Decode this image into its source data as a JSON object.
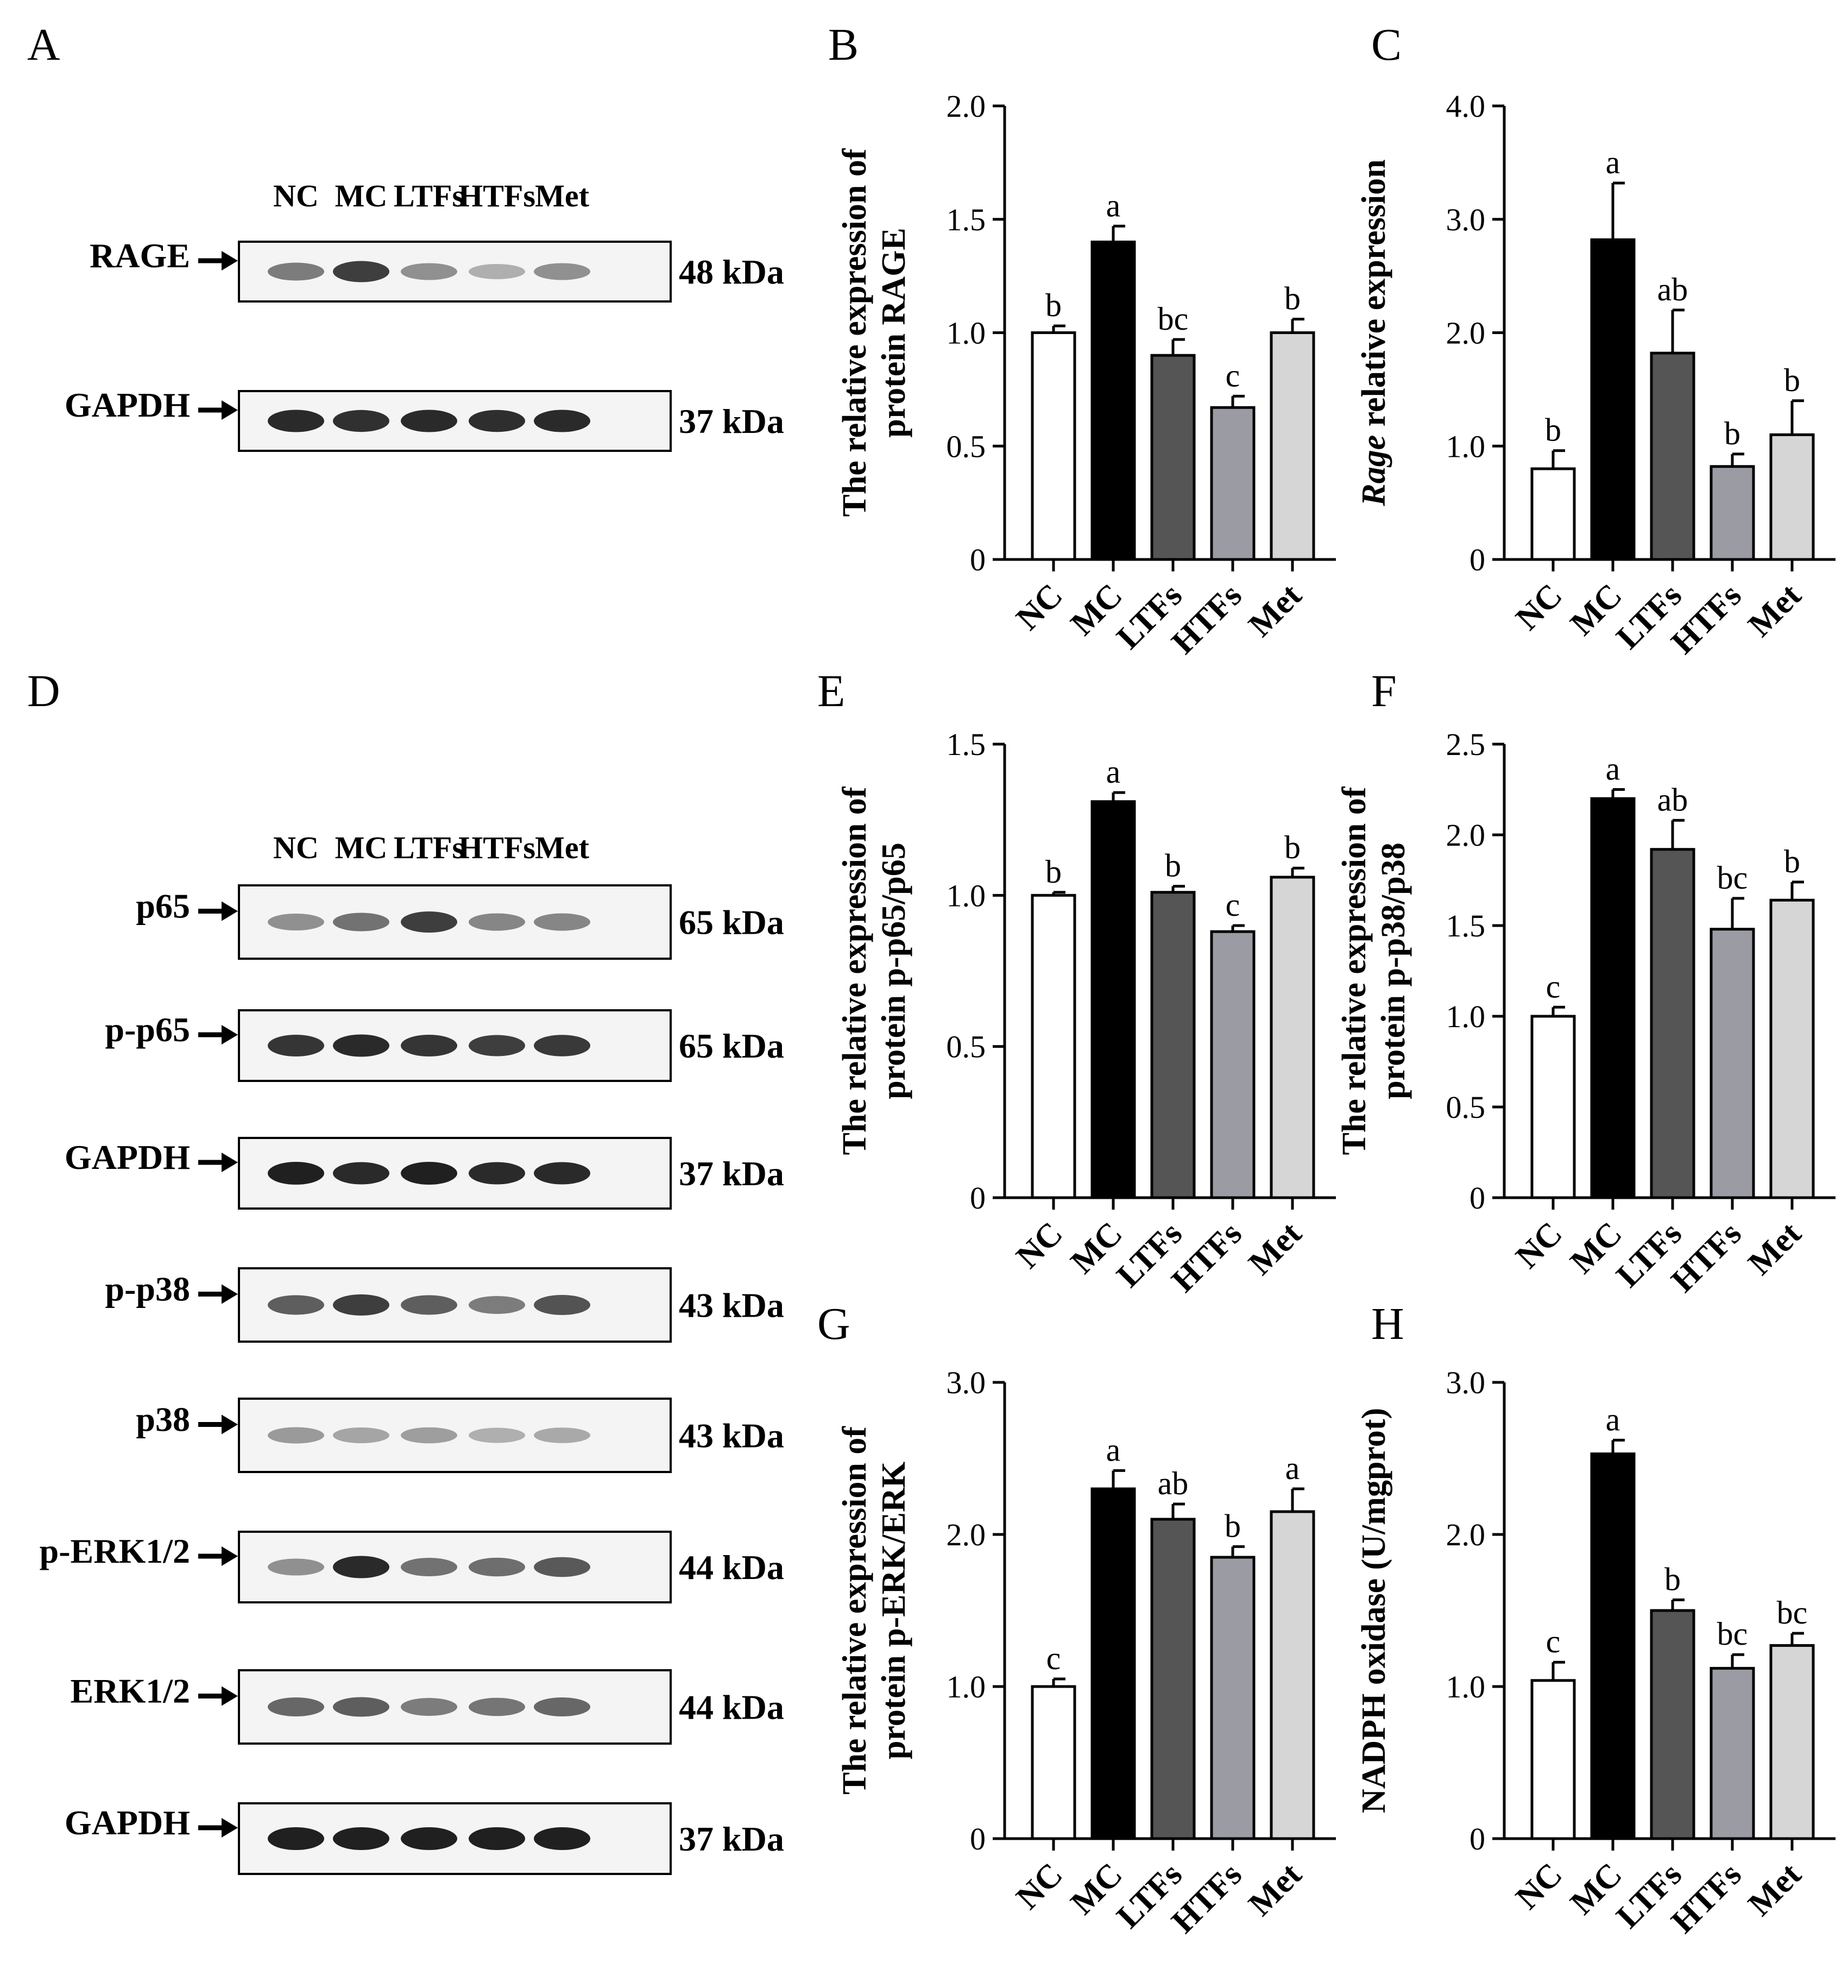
{
  "lanes": [
    "NC",
    "MC",
    "LTFs",
    "HTFs",
    "Met"
  ],
  "colors": {
    "NC": "#ffffff",
    "MC": "#000000",
    "LTFs": "#555555",
    "HTFs": "#9b9ba3",
    "Met": "#d6d6d6"
  },
  "blots": [
    {
      "panel": "A",
      "lane_labels": [
        "NC",
        "MC",
        "LTFs",
        "HTFs",
        "Met"
      ],
      "rows": [
        {
          "label": "RAGE",
          "kda": "48 kDa",
          "intensity": [
            0.55,
            0.85,
            0.45,
            0.3,
            0.45
          ]
        },
        {
          "label": "GAPDH",
          "kda": "37 kDa",
          "intensity": [
            0.95,
            0.92,
            0.95,
            0.93,
            0.95
          ]
        }
      ]
    },
    {
      "panel": "D",
      "lane_labels": [
        "NC",
        "MC",
        "LTFs",
        "HTFs",
        "Met"
      ],
      "rows": [
        {
          "label": "p65",
          "kda": "65 kDa",
          "intensity": [
            0.45,
            0.6,
            0.85,
            0.5,
            0.5
          ]
        },
        {
          "label": "p-p65",
          "kda": "65 kDa",
          "intensity": [
            0.9,
            0.95,
            0.9,
            0.85,
            0.88
          ]
        },
        {
          "label": "GAPDH",
          "kda": "37 kDa",
          "intensity": [
            1.0,
            0.95,
            1.0,
            0.95,
            0.95
          ]
        },
        {
          "label": "p-p38",
          "kda": "43 kDa",
          "intensity": [
            0.7,
            0.85,
            0.7,
            0.55,
            0.75
          ]
        },
        {
          "label": "p38",
          "kda": "43 kDa",
          "intensity": [
            0.4,
            0.35,
            0.38,
            0.3,
            0.33
          ]
        },
        {
          "label": "p-ERK1/2",
          "kda": "44 kDa",
          "intensity": [
            0.45,
            0.95,
            0.6,
            0.62,
            0.72
          ]
        },
        {
          "label": "ERK1/2",
          "kda": "44 kDa",
          "intensity": [
            0.65,
            0.7,
            0.55,
            0.58,
            0.65
          ]
        },
        {
          "label": "GAPDH",
          "kda": "37 kDa",
          "intensity": [
            1.0,
            1.0,
            1.0,
            1.0,
            1.0
          ]
        }
      ]
    }
  ],
  "chart_data": [
    {
      "panel": "B",
      "type": "bar",
      "categories": [
        "NC",
        "MC",
        "LTFs",
        "HTFs",
        "Met"
      ],
      "values": [
        1.0,
        1.4,
        0.9,
        0.67,
        1.0
      ],
      "errors": [
        0.03,
        0.07,
        0.07,
        0.05,
        0.06
      ],
      "sig": [
        "b",
        "a",
        "bc",
        "c",
        "b"
      ],
      "ylabel_lines": [
        "The relative expression of",
        "protein RAGE"
      ],
      "ylim": [
        0,
        2.0
      ],
      "yticks": [
        0,
        0.5,
        1.0,
        1.5,
        2.0
      ],
      "ytick_labels": [
        "0",
        "0.5",
        "1.0",
        "1.5",
        "2.0"
      ]
    },
    {
      "panel": "C",
      "type": "bar",
      "categories": [
        "NC",
        "MC",
        "LTFs",
        "HTFs",
        "Met"
      ],
      "values": [
        0.8,
        2.82,
        1.82,
        0.82,
        1.1
      ],
      "errors": [
        0.16,
        0.5,
        0.38,
        0.11,
        0.3
      ],
      "sig": [
        "b",
        "a",
        "ab",
        "b",
        "b"
      ],
      "ylabel_lines": [
        "Rage relative expression"
      ],
      "ylabel_italic_prefix": "Rage",
      "ylim": [
        0,
        4.0
      ],
      "yticks": [
        0,
        1.0,
        2.0,
        3.0,
        4.0
      ],
      "ytick_labels": [
        "0",
        "1.0",
        "2.0",
        "3.0",
        "4.0"
      ]
    },
    {
      "panel": "E",
      "type": "bar",
      "categories": [
        "NC",
        "MC",
        "LTFs",
        "HTFs",
        "Met"
      ],
      "values": [
        1.0,
        1.31,
        1.01,
        0.88,
        1.06
      ],
      "errors": [
        0.01,
        0.03,
        0.02,
        0.02,
        0.03
      ],
      "sig": [
        "b",
        "a",
        "b",
        "c",
        "b"
      ],
      "ylabel_lines": [
        "The relative expression of",
        "protein p-p65/p65"
      ],
      "ylim": [
        0,
        1.5
      ],
      "yticks": [
        0,
        0.5,
        1.0,
        1.5
      ],
      "ytick_labels": [
        "0",
        "0.5",
        "1.0",
        "1.5"
      ]
    },
    {
      "panel": "F",
      "type": "bar",
      "categories": [
        "NC",
        "MC",
        "LTFs",
        "HTFs",
        "Met"
      ],
      "values": [
        1.0,
        2.2,
        1.92,
        1.48,
        1.64
      ],
      "errors": [
        0.05,
        0.05,
        0.16,
        0.17,
        0.1
      ],
      "sig": [
        "c",
        "a",
        "ab",
        "bc",
        "b"
      ],
      "ylabel_lines": [
        "The relative expression of",
        "protein p-p38/p38"
      ],
      "ylim": [
        0,
        2.5
      ],
      "yticks": [
        0,
        0.5,
        1.0,
        1.5,
        2.0,
        2.5
      ],
      "ytick_labels": [
        "0",
        "0.5",
        "1.0",
        "1.5",
        "2.0",
        "2.5"
      ]
    },
    {
      "panel": "G",
      "type": "bar",
      "categories": [
        "NC",
        "MC",
        "LTFs",
        "HTFs",
        "Met"
      ],
      "values": [
        1.0,
        2.3,
        2.1,
        1.85,
        2.15
      ],
      "errors": [
        0.05,
        0.12,
        0.1,
        0.07,
        0.15
      ],
      "sig": [
        "c",
        "a",
        "ab",
        "b",
        "a"
      ],
      "ylabel_lines": [
        "The relative expression of",
        "protein p-ERK/ERK"
      ],
      "ylim": [
        0,
        3.0
      ],
      "yticks": [
        0,
        1.0,
        2.0,
        3.0
      ],
      "ytick_labels": [
        "0",
        "1.0",
        "2.0",
        "3.0"
      ]
    },
    {
      "panel": "H",
      "type": "bar",
      "categories": [
        "NC",
        "MC",
        "LTFs",
        "HTFs",
        "Met"
      ],
      "values": [
        1.04,
        2.53,
        1.5,
        1.12,
        1.27
      ],
      "errors": [
        0.12,
        0.09,
        0.07,
        0.09,
        0.08
      ],
      "sig": [
        "c",
        "a",
        "b",
        "bc",
        "bc"
      ],
      "ylabel_lines": [
        "NADPH oxidase (U/mgprot)"
      ],
      "ylim": [
        0,
        3.0
      ],
      "yticks": [
        0,
        1.0,
        2.0,
        3.0
      ],
      "ytick_labels": [
        "0",
        "1.0",
        "2.0",
        "3.0"
      ]
    }
  ]
}
